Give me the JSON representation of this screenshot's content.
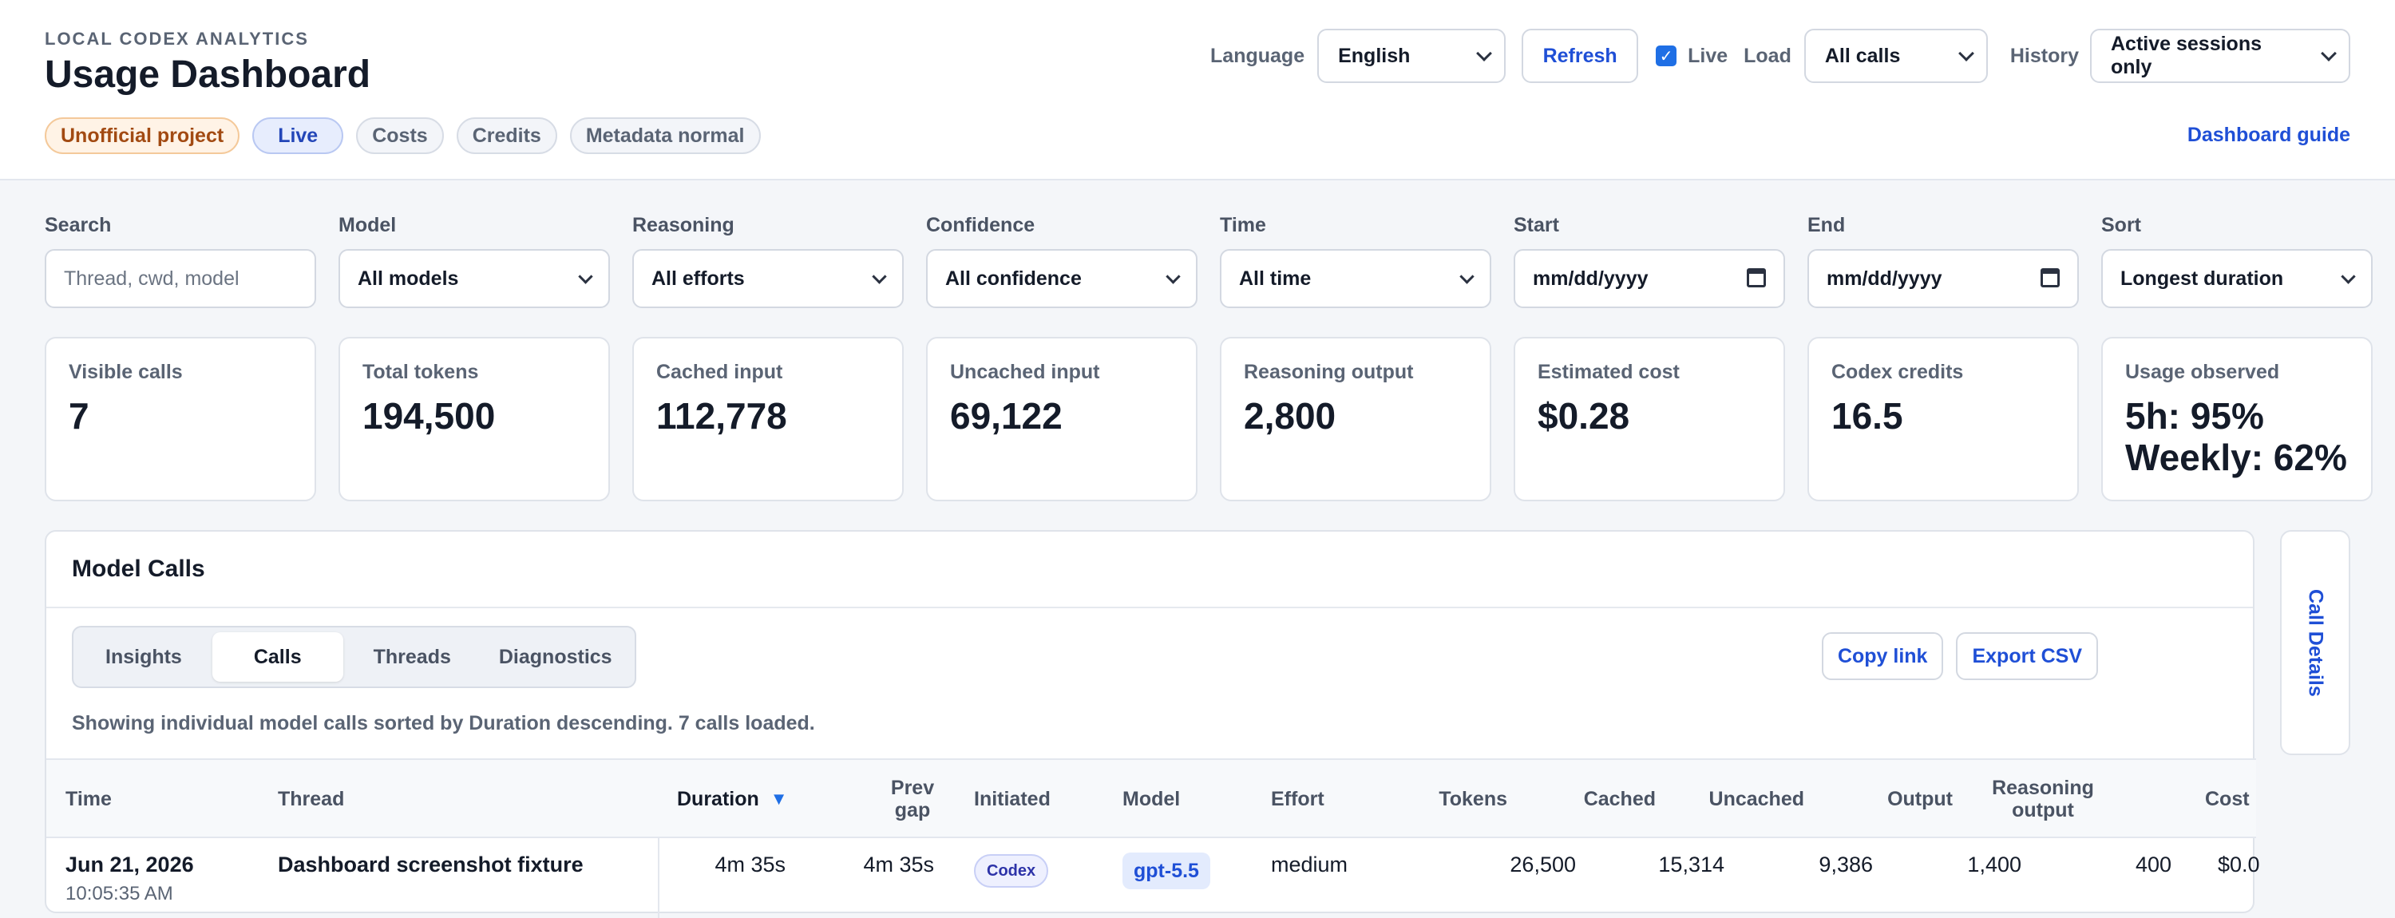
{
  "header": {
    "eyebrow": "LOCAL CODEX ANALYTICS",
    "title": "Usage Dashboard",
    "chips": [
      "Unofficial project",
      "Live",
      "Costs",
      "Credits",
      "Metadata normal"
    ],
    "guide_link": "Dashboard guide"
  },
  "controls": {
    "language_label": "Language",
    "language_value": "English",
    "refresh_label": "Refresh",
    "live_label": "Live",
    "live_checked": true,
    "load_label": "Load",
    "load_value": "All calls",
    "history_label": "History",
    "history_value": "Active sessions only"
  },
  "filters": [
    {
      "label": "Search",
      "value": "Thread, cwd, model",
      "kind": "input-placeholder"
    },
    {
      "label": "Model",
      "value": "All models",
      "kind": "select"
    },
    {
      "label": "Reasoning",
      "value": "All efforts",
      "kind": "select"
    },
    {
      "label": "Confidence",
      "value": "All confidence",
      "kind": "select"
    },
    {
      "label": "Time",
      "value": "All time",
      "kind": "select"
    },
    {
      "label": "Start",
      "value": "mm/dd/yyyy",
      "kind": "date"
    },
    {
      "label": "End",
      "value": "mm/dd/yyyy",
      "kind": "date"
    },
    {
      "label": "Sort",
      "value": "Longest duration",
      "kind": "select"
    }
  ],
  "stats": [
    {
      "label": "Visible calls",
      "value": "7"
    },
    {
      "label": "Total tokens",
      "value": "194,500"
    },
    {
      "label": "Cached input",
      "value": "112,778"
    },
    {
      "label": "Uncached input",
      "value": "69,122"
    },
    {
      "label": "Reasoning output",
      "value": "2,800"
    },
    {
      "label": "Estimated cost",
      "value": "$0.28"
    },
    {
      "label": "Codex credits",
      "value": "16.5"
    },
    {
      "label": "Usage observed",
      "value": "5h: 95%",
      "value2": "Weekly: 62%"
    }
  ],
  "panel": {
    "title": "Model Calls",
    "tabs": [
      "Insights",
      "Calls",
      "Threads",
      "Diagnostics"
    ],
    "active_tab": "Calls",
    "copy_link": "Copy link",
    "export_csv": "Export CSV",
    "summary": "Showing individual model calls sorted by Duration descending. 7 calls loaded."
  },
  "table": {
    "headers": {
      "time": "Time",
      "thread": "Thread",
      "duration": "Duration",
      "sort_indicator": "▼",
      "prev_gap_1": "Prev",
      "prev_gap_2": "gap",
      "initiated": "Initiated",
      "model": "Model",
      "effort": "Effort",
      "tokens": "Tokens",
      "cached": "Cached",
      "uncached": "Uncached",
      "output": "Output",
      "reasoning_1": "Reasoning",
      "reasoning_2": "output",
      "cost": "Cost"
    },
    "rows": [
      {
        "date": "Jun 21, 2026",
        "time": "10:05:35 AM",
        "thread": "Dashboard screenshot fixture",
        "duration": "4m 35s",
        "prev_gap": "4m 35s",
        "initiated": "Codex",
        "model": "gpt-5.5",
        "effort": "medium",
        "tokens": "26,500",
        "cached": "15,314",
        "uncached": "9,386",
        "output": "1,400",
        "reasoning_output": "400",
        "cost": "$0.0"
      }
    ]
  },
  "side_tab": "Call Details",
  "colors": {
    "accent": "#1f4fd6",
    "warn_chip": "#a24a12",
    "background": "#f4f6f9"
  }
}
